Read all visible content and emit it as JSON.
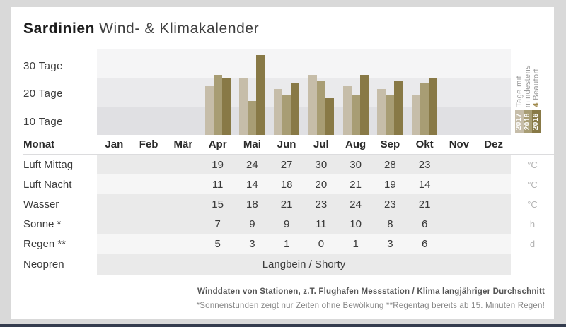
{
  "title": {
    "brand": "Sardinien",
    "rest": "Wind- & Klimakalender"
  },
  "chart": {
    "y_axis_labels": [
      "30 Tage",
      "20 Tage",
      "10 Tage"
    ],
    "legend": {
      "caption_line1": "Tage mit",
      "caption_line2": "mindestens",
      "caption_highlight": "4 ",
      "caption_tail": "Beaufort",
      "years": [
        {
          "label": "2017",
          "color": "#c6bda9"
        },
        {
          "label": "2018",
          "color": "#a89d74"
        },
        {
          "label": "2016",
          "color": "#887946"
        }
      ]
    }
  },
  "chart_data": {
    "type": "bar",
    "title": "Tage mit mindestens 4 Beaufort",
    "categories": [
      "Jan",
      "Feb",
      "Mär",
      "Apr",
      "Mai",
      "Jun",
      "Jul",
      "Aug",
      "Sep",
      "Okt",
      "Nov",
      "Dez"
    ],
    "series": [
      {
        "name": "2017",
        "color": "#c6bda9",
        "values": [
          null,
          null,
          null,
          17,
          20,
          16,
          21,
          17,
          16,
          14,
          null,
          null
        ]
      },
      {
        "name": "2018",
        "color": "#a89d74",
        "values": [
          null,
          null,
          null,
          21,
          12,
          14,
          19,
          14,
          14,
          18,
          null,
          null
        ]
      },
      {
        "name": "2016",
        "color": "#887946",
        "values": [
          null,
          null,
          null,
          20,
          28,
          18,
          13,
          21,
          19,
          20,
          null,
          null
        ]
      }
    ],
    "ylabel": "Tage",
    "ylim": [
      0,
      30
    ],
    "grid_bands": [
      "0-10",
      "10-20",
      "20-30"
    ],
    "legend_position": "right"
  },
  "table": {
    "header_label": "Monat",
    "rows": [
      {
        "label": "Luft Mittag",
        "values": [
          "",
          "",
          "",
          "19",
          "24",
          "27",
          "30",
          "30",
          "28",
          "23",
          "",
          ""
        ],
        "unit": "°C",
        "shade": "dark"
      },
      {
        "label": "Luft Nacht",
        "values": [
          "",
          "",
          "",
          "11",
          "14",
          "18",
          "20",
          "21",
          "19",
          "14",
          "",
          ""
        ],
        "unit": "°C",
        "shade": "light"
      },
      {
        "label": "Wasser",
        "values": [
          "",
          "",
          "",
          "15",
          "18",
          "21",
          "23",
          "24",
          "23",
          "21",
          "",
          ""
        ],
        "unit": "°C",
        "shade": "dark"
      },
      {
        "label": "Sonne *",
        "values": [
          "",
          "",
          "",
          "7",
          "9",
          "9",
          "11",
          "10",
          "8",
          "6",
          "",
          ""
        ],
        "unit": "h",
        "shade": "dark"
      },
      {
        "label": "Regen **",
        "values": [
          "",
          "",
          "",
          "5",
          "3",
          "1",
          "0",
          "1",
          "3",
          "6",
          "",
          ""
        ],
        "unit": "d",
        "shade": "light"
      },
      {
        "label": "Neopren",
        "span_text": "Langbein / Shorty",
        "unit": "",
        "shade": "dark"
      }
    ]
  },
  "footer": {
    "line1": "Winddaten von Stationen, z.T. Flughafen Messstation / Klima langjähriger Durchschnitt",
    "line2": "*Sonnenstunden zeigt nur Zeiten ohne Bewölkung  **Regentag bereits ab 15. Minuten Regen!"
  },
  "colors": {
    "background": "#d9d9d9",
    "card": "#ffffff",
    "band_top": "#f5f5f6",
    "band_mid": "#eaeaec",
    "band_bottom": "#e0e0e3",
    "row_dark": "#eaeaea",
    "row_light": "#f6f6f6",
    "highlight_gold": "#a08a4d",
    "bottom_bar": "#343c4e"
  }
}
